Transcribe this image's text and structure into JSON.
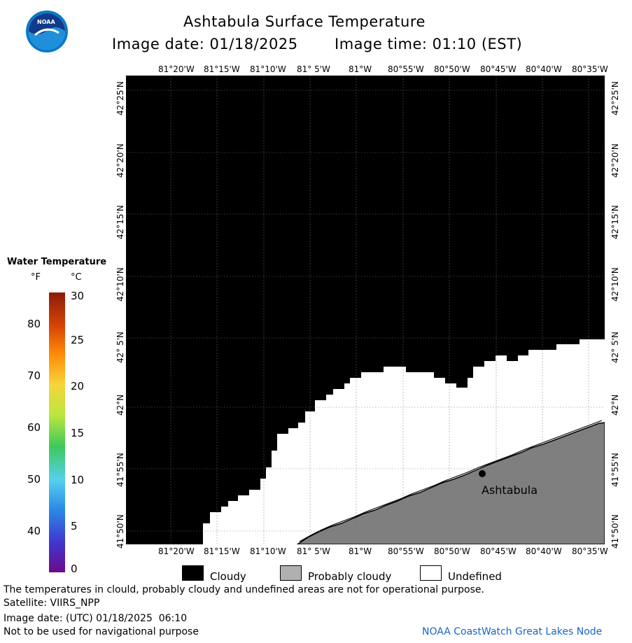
{
  "header": {
    "title": "Ashtabula Surface Temperature",
    "image_date": "Image date: 01/18/2025",
    "image_time": "Image time: 01:10 (EST)",
    "logo_text": "NOAA"
  },
  "axes": {
    "top_lon": [
      "81°20'W",
      "81°15'W",
      "81°10'W",
      "81° 5'W",
      "81°W",
      "80°55'W",
      "80°50'W",
      "80°45'W",
      "80°40'W",
      "80°35'W"
    ],
    "bottom_lon": [
      "81°20'W",
      "81°15'W",
      "81°10'W",
      "81° 5'W",
      "81°W",
      "80°55'W",
      "80°50'W",
      "80°45'W",
      "80°40'W",
      "80°35'W"
    ],
    "lat": [
      "42°25'N",
      "42°20'N",
      "42°15'N",
      "42°10'N",
      "42° 5'N",
      "42°N",
      "41°55'N",
      "41°50'N"
    ]
  },
  "map": {
    "location_label": "Ashtabula",
    "colors": {
      "cloudy": "#000000",
      "land": "#7f7f7f",
      "undefined": "#ffffff"
    }
  },
  "colorbar": {
    "title": "Water Temperature",
    "unit_f": "°F",
    "unit_c": "°C",
    "f_ticks": [
      "80",
      "70",
      "60",
      "50",
      "40"
    ],
    "c_ticks": [
      "30",
      "25",
      "20",
      "15",
      "10",
      "5",
      "0"
    ]
  },
  "legend": {
    "cloudy": "Cloudy",
    "probably_cloudy": "Probably cloudy",
    "undefined": "Undefined"
  },
  "footer": {
    "note": "The temperatures in clould, probably cloudy and undefined areas are not for operational purpose.",
    "satellite": "Satellite: VIIRS_NPP",
    "utc_date": "Image date: (UTC) 01/18/2025  06:10",
    "nav_warning": "Not to be used for navigational purpose",
    "credit": "NOAA CoastWatch Great Lakes Node"
  }
}
